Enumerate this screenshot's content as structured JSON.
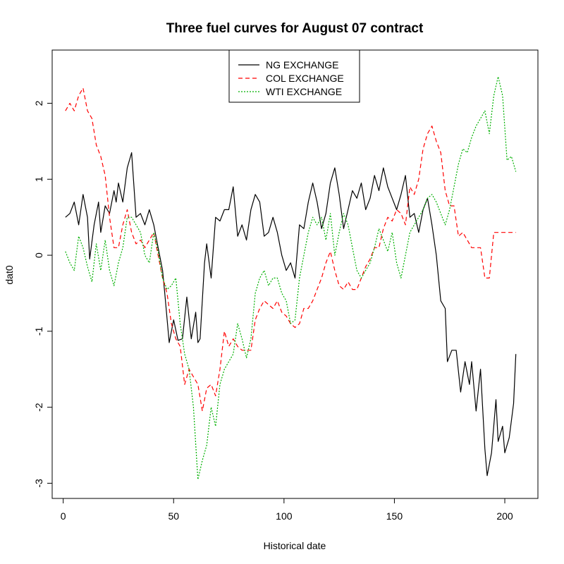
{
  "chart_data": {
    "type": "line",
    "title": "Three fuel curves for August 07 contract",
    "xlabel": "Historical date",
    "ylabel": "dat0",
    "xlim": [
      -5,
      215
    ],
    "ylim": [
      -3.2,
      2.7
    ],
    "x_ticks": [
      0,
      50,
      100,
      150,
      200
    ],
    "y_ticks": [
      -3,
      -2,
      -1,
      0,
      1,
      2
    ],
    "x_tick_labels": [
      "0",
      "50",
      "100",
      "150",
      "200"
    ],
    "y_tick_labels": [
      "-3",
      "-2",
      "-1",
      "0",
      "1",
      "2"
    ],
    "legend_position": "top-center",
    "grid": false,
    "series": [
      {
        "name": "NG EXCHANGE",
        "color": "#000000",
        "dash": "solid",
        "points": [
          [
            1,
            0.5
          ],
          [
            3,
            0.55
          ],
          [
            5,
            0.7
          ],
          [
            7,
            0.4
          ],
          [
            9,
            0.8
          ],
          [
            11,
            0.5
          ],
          [
            12,
            -0.05
          ],
          [
            14,
            0.4
          ],
          [
            16,
            0.7
          ],
          [
            17,
            0.3
          ],
          [
            19,
            0.65
          ],
          [
            21,
            0.55
          ],
          [
            23,
            0.85
          ],
          [
            24,
            0.7
          ],
          [
            25,
            0.95
          ],
          [
            27,
            0.7
          ],
          [
            29,
            1.15
          ],
          [
            31,
            1.35
          ],
          [
            33,
            0.5
          ],
          [
            35,
            0.55
          ],
          [
            37,
            0.4
          ],
          [
            39,
            0.6
          ],
          [
            41,
            0.4
          ],
          [
            43,
            0.1
          ],
          [
            45,
            -0.2
          ],
          [
            46,
            -0.5
          ],
          [
            48,
            -1.15
          ],
          [
            50,
            -0.85
          ],
          [
            52,
            -1.12
          ],
          [
            54,
            -1.1
          ],
          [
            56,
            -0.55
          ],
          [
            58,
            -1.1
          ],
          [
            60,
            -0.75
          ],
          [
            61,
            -1.15
          ],
          [
            62,
            -1.1
          ],
          [
            64,
            -0.1
          ],
          [
            65,
            0.15
          ],
          [
            67,
            -0.3
          ],
          [
            69,
            0.5
          ],
          [
            71,
            0.45
          ],
          [
            73,
            0.6
          ],
          [
            75,
            0.6
          ],
          [
            77,
            0.9
          ],
          [
            79,
            0.25
          ],
          [
            81,
            0.4
          ],
          [
            83,
            0.2
          ],
          [
            85,
            0.6
          ],
          [
            87,
            0.8
          ],
          [
            89,
            0.7
          ],
          [
            91,
            0.25
          ],
          [
            93,
            0.3
          ],
          [
            95,
            0.5
          ],
          [
            97,
            0.3
          ],
          [
            99,
            0.0
          ],
          [
            101,
            -0.2
          ],
          [
            103,
            -0.1
          ],
          [
            105,
            -0.3
          ],
          [
            107,
            0.4
          ],
          [
            109,
            0.35
          ],
          [
            111,
            0.7
          ],
          [
            113,
            0.95
          ],
          [
            115,
            0.7
          ],
          [
            117,
            0.35
          ],
          [
            119,
            0.55
          ],
          [
            121,
            0.95
          ],
          [
            123,
            1.15
          ],
          [
            125,
            0.8
          ],
          [
            127,
            0.35
          ],
          [
            129,
            0.6
          ],
          [
            131,
            0.85
          ],
          [
            133,
            0.75
          ],
          [
            135,
            0.95
          ],
          [
            137,
            0.6
          ],
          [
            139,
            0.75
          ],
          [
            141,
            1.05
          ],
          [
            143,
            0.85
          ],
          [
            145,
            1.15
          ],
          [
            147,
            0.9
          ],
          [
            149,
            0.75
          ],
          [
            151,
            0.6
          ],
          [
            153,
            0.8
          ],
          [
            155,
            1.05
          ],
          [
            157,
            0.5
          ],
          [
            159,
            0.55
          ],
          [
            161,
            0.3
          ],
          [
            163,
            0.6
          ],
          [
            165,
            0.75
          ],
          [
            167,
            0.4
          ],
          [
            169,
            0.0
          ],
          [
            171,
            -0.6
          ],
          [
            173,
            -0.7
          ],
          [
            174,
            -1.4
          ],
          [
            176,
            -1.25
          ],
          [
            178,
            -1.25
          ],
          [
            180,
            -1.8
          ],
          [
            182,
            -1.4
          ],
          [
            184,
            -1.7
          ],
          [
            185,
            -1.4
          ],
          [
            187,
            -2.05
          ],
          [
            189,
            -1.5
          ],
          [
            191,
            -2.55
          ],
          [
            192,
            -2.9
          ],
          [
            194,
            -2.6
          ],
          [
            196,
            -1.9
          ],
          [
            197,
            -2.45
          ],
          [
            199,
            -2.25
          ],
          [
            200,
            -2.6
          ],
          [
            202,
            -2.4
          ],
          [
            204,
            -1.95
          ],
          [
            205,
            -1.3
          ]
        ]
      },
      {
        "name": "COL EXCHANGE",
        "color": "#ff0000",
        "dash": "6,4",
        "points": [
          [
            1,
            1.9
          ],
          [
            3,
            2.0
          ],
          [
            5,
            1.9
          ],
          [
            7,
            2.1
          ],
          [
            9,
            2.2
          ],
          [
            11,
            1.9
          ],
          [
            13,
            1.8
          ],
          [
            15,
            1.45
          ],
          [
            17,
            1.3
          ],
          [
            19,
            1.05
          ],
          [
            21,
            0.5
          ],
          [
            23,
            0.1
          ],
          [
            25,
            0.1
          ],
          [
            27,
            0.4
          ],
          [
            29,
            0.6
          ],
          [
            31,
            0.3
          ],
          [
            33,
            0.15
          ],
          [
            35,
            0.2
          ],
          [
            37,
            0.1
          ],
          [
            39,
            0.2
          ],
          [
            41,
            0.3
          ],
          [
            43,
            0.0
          ],
          [
            45,
            -0.3
          ],
          [
            47,
            -0.5
          ],
          [
            49,
            -0.9
          ],
          [
            51,
            -1.1
          ],
          [
            53,
            -1.2
          ],
          [
            55,
            -1.7
          ],
          [
            57,
            -1.5
          ],
          [
            59,
            -1.6
          ],
          [
            61,
            -1.7
          ],
          [
            63,
            -2.05
          ],
          [
            65,
            -1.75
          ],
          [
            67,
            -1.7
          ],
          [
            69,
            -1.85
          ],
          [
            71,
            -1.5
          ],
          [
            73,
            -1.0
          ],
          [
            75,
            -1.2
          ],
          [
            77,
            -1.1
          ],
          [
            79,
            -1.2
          ],
          [
            81,
            -1.25
          ],
          [
            83,
            -1.25
          ],
          [
            85,
            -1.25
          ],
          [
            87,
            -0.85
          ],
          [
            89,
            -0.7
          ],
          [
            91,
            -0.6
          ],
          [
            93,
            -0.65
          ],
          [
            95,
            -0.7
          ],
          [
            97,
            -0.6
          ],
          [
            99,
            -0.75
          ],
          [
            101,
            -0.8
          ],
          [
            103,
            -0.9
          ],
          [
            105,
            -0.95
          ],
          [
            107,
            -0.9
          ],
          [
            109,
            -0.7
          ],
          [
            111,
            -0.7
          ],
          [
            113,
            -0.6
          ],
          [
            115,
            -0.45
          ],
          [
            117,
            -0.3
          ],
          [
            119,
            -0.1
          ],
          [
            121,
            0.05
          ],
          [
            123,
            -0.2
          ],
          [
            125,
            -0.4
          ],
          [
            127,
            -0.45
          ],
          [
            129,
            -0.35
          ],
          [
            131,
            -0.45
          ],
          [
            133,
            -0.45
          ],
          [
            135,
            -0.3
          ],
          [
            137,
            -0.15
          ],
          [
            139,
            -0.05
          ],
          [
            141,
            0.1
          ],
          [
            143,
            0.1
          ],
          [
            145,
            0.35
          ],
          [
            147,
            0.5
          ],
          [
            149,
            0.45
          ],
          [
            151,
            0.6
          ],
          [
            153,
            0.55
          ],
          [
            155,
            0.4
          ],
          [
            157,
            0.9
          ],
          [
            159,
            0.8
          ],
          [
            161,
            1.0
          ],
          [
            163,
            1.4
          ],
          [
            165,
            1.6
          ],
          [
            167,
            1.7
          ],
          [
            169,
            1.5
          ],
          [
            171,
            1.35
          ],
          [
            173,
            0.85
          ],
          [
            175,
            0.65
          ],
          [
            177,
            0.65
          ],
          [
            179,
            0.25
          ],
          [
            181,
            0.3
          ],
          [
            183,
            0.2
          ],
          [
            185,
            0.1
          ],
          [
            187,
            0.1
          ],
          [
            189,
            0.1
          ],
          [
            191,
            -0.3
          ],
          [
            193,
            -0.3
          ],
          [
            195,
            0.3
          ],
          [
            197,
            0.3
          ],
          [
            199,
            0.3
          ],
          [
            201,
            0.3
          ],
          [
            203,
            0.3
          ],
          [
            205,
            0.3
          ]
        ]
      },
      {
        "name": "WTI EXCHANGE",
        "color": "#00b000",
        "dash": "2,2",
        "points": [
          [
            1,
            0.05
          ],
          [
            3,
            -0.1
          ],
          [
            5,
            -0.2
          ],
          [
            7,
            0.25
          ],
          [
            9,
            0.1
          ],
          [
            11,
            -0.15
          ],
          [
            13,
            -0.35
          ],
          [
            15,
            0.15
          ],
          [
            17,
            -0.2
          ],
          [
            19,
            0.2
          ],
          [
            21,
            -0.2
          ],
          [
            23,
            -0.4
          ],
          [
            25,
            -0.1
          ],
          [
            27,
            0.1
          ],
          [
            29,
            0.5
          ],
          [
            31,
            0.5
          ],
          [
            33,
            0.4
          ],
          [
            35,
            0.3
          ],
          [
            37,
            0.0
          ],
          [
            39,
            -0.1
          ],
          [
            41,
            0.3
          ],
          [
            43,
            0.05
          ],
          [
            45,
            -0.3
          ],
          [
            47,
            -0.45
          ],
          [
            49,
            -0.4
          ],
          [
            51,
            -0.3
          ],
          [
            53,
            -0.9
          ],
          [
            55,
            -1.3
          ],
          [
            57,
            -1.5
          ],
          [
            59,
            -2.0
          ],
          [
            61,
            -2.95
          ],
          [
            63,
            -2.7
          ],
          [
            65,
            -2.5
          ],
          [
            67,
            -2.0
          ],
          [
            69,
            -2.25
          ],
          [
            71,
            -1.7
          ],
          [
            73,
            -1.5
          ],
          [
            75,
            -1.4
          ],
          [
            77,
            -1.3
          ],
          [
            79,
            -0.9
          ],
          [
            81,
            -1.1
          ],
          [
            83,
            -1.35
          ],
          [
            85,
            -1.1
          ],
          [
            87,
            -0.5
          ],
          [
            89,
            -0.3
          ],
          [
            91,
            -0.2
          ],
          [
            93,
            -0.4
          ],
          [
            95,
            -0.3
          ],
          [
            97,
            -0.3
          ],
          [
            99,
            -0.5
          ],
          [
            101,
            -0.6
          ],
          [
            103,
            -0.9
          ],
          [
            105,
            -0.85
          ],
          [
            107,
            -0.3
          ],
          [
            109,
            0.0
          ],
          [
            111,
            0.3
          ],
          [
            113,
            0.5
          ],
          [
            115,
            0.4
          ],
          [
            117,
            0.5
          ],
          [
            119,
            0.2
          ],
          [
            121,
            0.55
          ],
          [
            123,
            0.0
          ],
          [
            125,
            0.3
          ],
          [
            127,
            0.55
          ],
          [
            129,
            0.4
          ],
          [
            131,
            0.1
          ],
          [
            133,
            -0.2
          ],
          [
            135,
            -0.3
          ],
          [
            137,
            -0.2
          ],
          [
            139,
            -0.1
          ],
          [
            141,
            0.1
          ],
          [
            143,
            0.35
          ],
          [
            145,
            0.2
          ],
          [
            147,
            0.05
          ],
          [
            149,
            0.3
          ],
          [
            151,
            -0.1
          ],
          [
            153,
            -0.3
          ],
          [
            155,
            0.0
          ],
          [
            157,
            0.3
          ],
          [
            159,
            0.4
          ],
          [
            161,
            0.5
          ],
          [
            163,
            0.6
          ],
          [
            165,
            0.75
          ],
          [
            167,
            0.8
          ],
          [
            169,
            0.7
          ],
          [
            171,
            0.55
          ],
          [
            173,
            0.4
          ],
          [
            175,
            0.6
          ],
          [
            177,
            0.9
          ],
          [
            179,
            1.2
          ],
          [
            181,
            1.4
          ],
          [
            183,
            1.35
          ],
          [
            185,
            1.55
          ],
          [
            187,
            1.7
          ],
          [
            189,
            1.8
          ],
          [
            191,
            1.9
          ],
          [
            193,
            1.6
          ],
          [
            195,
            2.1
          ],
          [
            197,
            2.35
          ],
          [
            199,
            2.1
          ],
          [
            201,
            1.25
          ],
          [
            203,
            1.3
          ],
          [
            205,
            1.1
          ]
        ]
      }
    ]
  }
}
